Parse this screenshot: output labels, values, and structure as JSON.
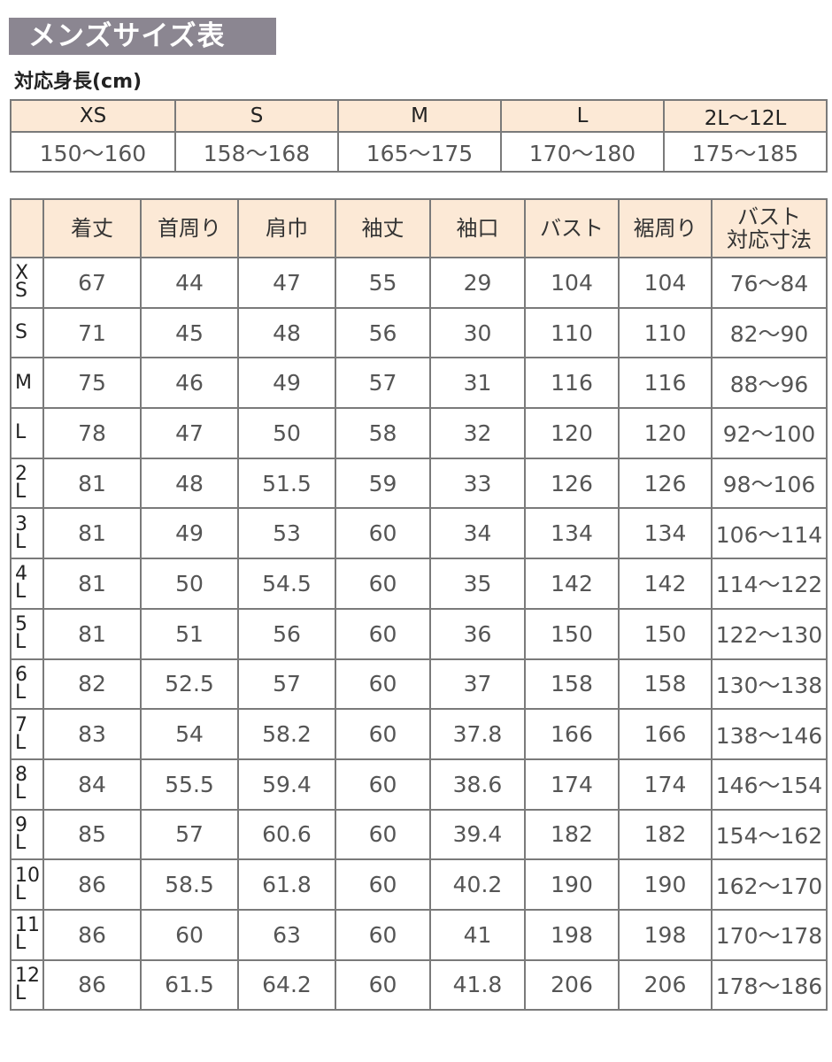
{
  "title": "メンズサイズ表",
  "height_table": {
    "label": "対応身長(cm)",
    "sizes": [
      "XS",
      "S",
      "M",
      "L",
      "2L〜12L"
    ],
    "ranges": [
      "150〜160",
      "158〜168",
      "165〜175",
      "170〜180",
      "175〜185"
    ]
  },
  "size_table": {
    "headers": [
      "",
      "着丈",
      "首周り",
      "肩巾",
      "袖丈",
      "袖口",
      "バスト",
      "裾周り",
      "バスト\n対応寸法"
    ],
    "rows": [
      {
        "size": [
          "X",
          "S"
        ],
        "values": [
          "67",
          "44",
          "47",
          "55",
          "29",
          "104",
          "104",
          "76〜84"
        ]
      },
      {
        "size": [
          "S"
        ],
        "values": [
          "71",
          "45",
          "48",
          "56",
          "30",
          "110",
          "110",
          "82〜90"
        ]
      },
      {
        "size": [
          "M"
        ],
        "values": [
          "75",
          "46",
          "49",
          "57",
          "31",
          "116",
          "116",
          "88〜96"
        ]
      },
      {
        "size": [
          "L"
        ],
        "values": [
          "78",
          "47",
          "50",
          "58",
          "32",
          "120",
          "120",
          "92〜100"
        ]
      },
      {
        "size": [
          "2",
          "L"
        ],
        "values": [
          "81",
          "48",
          "51.5",
          "59",
          "33",
          "126",
          "126",
          "98〜106"
        ]
      },
      {
        "size": [
          "3",
          "L"
        ],
        "values": [
          "81",
          "49",
          "53",
          "60",
          "34",
          "134",
          "134",
          "106〜114"
        ]
      },
      {
        "size": [
          "4",
          "L"
        ],
        "values": [
          "81",
          "50",
          "54.5",
          "60",
          "35",
          "142",
          "142",
          "114〜122"
        ]
      },
      {
        "size": [
          "5",
          "L"
        ],
        "values": [
          "81",
          "51",
          "56",
          "60",
          "36",
          "150",
          "150",
          "122〜130"
        ]
      },
      {
        "size": [
          "6",
          "L"
        ],
        "values": [
          "82",
          "52.5",
          "57",
          "60",
          "37",
          "158",
          "158",
          "130〜138"
        ]
      },
      {
        "size": [
          "7",
          "L"
        ],
        "values": [
          "83",
          "54",
          "58.2",
          "60",
          "37.8",
          "166",
          "166",
          "138〜146"
        ]
      },
      {
        "size": [
          "8",
          "L"
        ],
        "values": [
          "84",
          "55.5",
          "59.4",
          "60",
          "38.6",
          "174",
          "174",
          "146〜154"
        ]
      },
      {
        "size": [
          "9",
          "L"
        ],
        "values": [
          "85",
          "57",
          "60.6",
          "60",
          "39.4",
          "182",
          "182",
          "154〜162"
        ]
      },
      {
        "size": [
          "10",
          "L"
        ],
        "values": [
          "86",
          "58.5",
          "61.8",
          "60",
          "40.2",
          "190",
          "190",
          "162〜170"
        ]
      },
      {
        "size": [
          "11",
          "L"
        ],
        "values": [
          "86",
          "60",
          "63",
          "60",
          "41",
          "198",
          "198",
          "170〜178"
        ]
      },
      {
        "size": [
          "12",
          "L"
        ],
        "values": [
          "86",
          "61.5",
          "64.2",
          "60",
          "41.8",
          "206",
          "206",
          "178〜186"
        ]
      }
    ]
  },
  "colors": {
    "title_bg": "#8b8691",
    "header_bg": "#fce9d6",
    "border": "#7a7a7a"
  }
}
